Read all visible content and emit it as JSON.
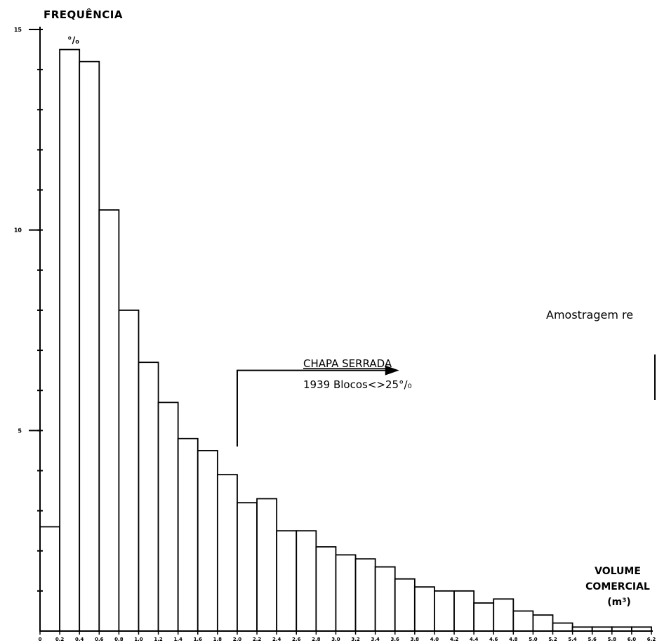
{
  "chart_data": {
    "type": "bar",
    "ylabel": "FREQUÊNCIA",
    "yunit": "°/₀",
    "xlabel_lines": [
      "VOLUME",
      "COMERCIAL",
      "(m³)"
    ],
    "ylim": [
      0,
      15
    ],
    "yticks": [
      {
        "value": 5,
        "label": "5"
      },
      {
        "value": 10,
        "label": "10"
      },
      {
        "value": 15,
        "label": "15"
      }
    ],
    "xlim": [
      0,
      6.2
    ],
    "xticks": [
      "0",
      "0.2",
      "0.4",
      "0.6",
      "0.8",
      "1.0",
      "1.2",
      "1.4",
      "1.6",
      "1.8",
      "2.0",
      "2.2",
      "2.4",
      "2.6",
      "2.8",
      "3.0",
      "3.2",
      "3.4",
      "3.6",
      "3.8",
      "4.0",
      "4.2",
      "4.4",
      "4.6",
      "4.8",
      "5.0",
      "5.2",
      "5.4",
      "5.6",
      "5.8",
      "6.0",
      "6.2"
    ],
    "bin_width": 0.2,
    "values": [
      2.6,
      14.5,
      14.2,
      10.5,
      8.0,
      6.7,
      5.7,
      4.8,
      4.5,
      3.9,
      3.2,
      3.3,
      2.5,
      2.5,
      2.1,
      1.9,
      1.8,
      1.6,
      1.3,
      1.1,
      1.0,
      1.0,
      0.7,
      0.8,
      0.5,
      0.4,
      0.2,
      0.1,
      0.1,
      0.1,
      0.1
    ],
    "annotation": {
      "title": "CHAPA SERRADA",
      "subtitle": "1939 Blocos<>25°/₀",
      "start_x": 2.0,
      "start_y": 4.6,
      "level_y": 6.5,
      "end_x": 3.6
    },
    "side_text": "Amostragem re"
  }
}
